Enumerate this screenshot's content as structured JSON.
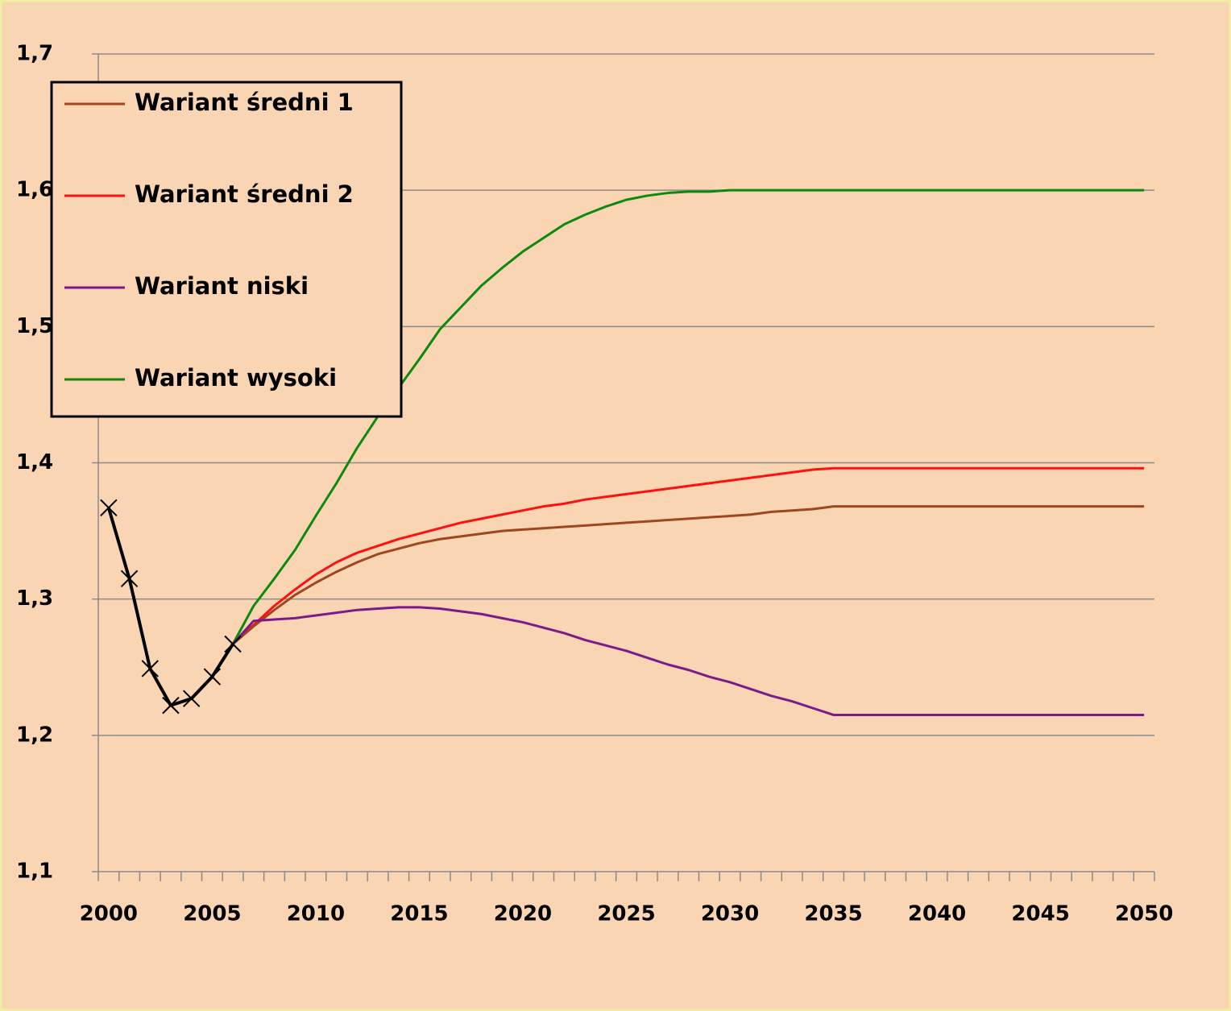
{
  "chart_data": {
    "type": "line",
    "categories": [
      "2000",
      null,
      null,
      null,
      null,
      "2005",
      null,
      null,
      null,
      null,
      "2010",
      null,
      null,
      null,
      null,
      "2015",
      null,
      null,
      null,
      null,
      "2020",
      null,
      null,
      null,
      null,
      "2025",
      null,
      null,
      null,
      null,
      "2030",
      null,
      null,
      null,
      null,
      "2035",
      null,
      null,
      null,
      null,
      "2040",
      null,
      null,
      null,
      null,
      "2045",
      null,
      null,
      null,
      null,
      "2050"
    ],
    "ylim": [
      1.1,
      1.7
    ],
    "yticks": [
      {
        "value": 1.1,
        "label": "1,1"
      },
      {
        "value": 1.2,
        "label": "1,2"
      },
      {
        "value": 1.3,
        "label": "1,3"
      },
      {
        "value": 1.4,
        "label": "1,4"
      },
      {
        "value": 1.5,
        "label": "1,5"
      },
      {
        "value": 1.6,
        "label": "1,6"
      },
      {
        "value": 1.7,
        "label": "1,7"
      }
    ],
    "grid": true,
    "legend": "upper left",
    "series": [
      {
        "name": "Wariant wysoki",
        "color": "#0b8a0b",
        "values": [
          null,
          null,
          null,
          null,
          null,
          null,
          1.267,
          1.295,
          1.315,
          1.336,
          1.361,
          1.385,
          1.411,
          1.434,
          1.455,
          1.476,
          1.498,
          1.514,
          1.53,
          1.543,
          1.555,
          1.565,
          1.575,
          1.582,
          1.588,
          1.593,
          1.596,
          1.598,
          1.599,
          1.599,
          1.6,
          1.6,
          1.6,
          1.6,
          1.6,
          1.6,
          1.6,
          1.6,
          1.6,
          1.6,
          1.6,
          1.6,
          1.6,
          1.6,
          1.6,
          1.6,
          1.6,
          1.6,
          1.6,
          1.6,
          1.6
        ]
      },
      {
        "name": "Wariant średni 2",
        "color": "#ff1010",
        "values": [
          null,
          null,
          null,
          null,
          null,
          null,
          1.267,
          1.281,
          1.295,
          1.307,
          1.318,
          1.327,
          1.334,
          1.339,
          1.344,
          1.348,
          1.352,
          1.356,
          1.359,
          1.362,
          1.365,
          1.368,
          1.37,
          1.373,
          1.375,
          1.377,
          1.379,
          1.381,
          1.383,
          1.385,
          1.387,
          1.389,
          1.391,
          1.393,
          1.395,
          1.396,
          1.396,
          1.396,
          1.396,
          1.396,
          1.396,
          1.396,
          1.396,
          1.396,
          1.396,
          1.396,
          1.396,
          1.396,
          1.396,
          1.396,
          1.396
        ]
      },
      {
        "name": "Wariant średni 1",
        "color": "#a0461e",
        "values": [
          null,
          null,
          null,
          null,
          null,
          null,
          1.267,
          1.28,
          1.292,
          1.303,
          1.312,
          1.32,
          1.327,
          1.333,
          1.337,
          1.341,
          1.344,
          1.346,
          1.348,
          1.35,
          1.351,
          1.352,
          1.353,
          1.354,
          1.355,
          1.356,
          1.357,
          1.358,
          1.359,
          1.36,
          1.361,
          1.362,
          1.364,
          1.365,
          1.366,
          1.368,
          1.368,
          1.368,
          1.368,
          1.368,
          1.368,
          1.368,
          1.368,
          1.368,
          1.368,
          1.368,
          1.368,
          1.368,
          1.368,
          1.368,
          1.368
        ]
      },
      {
        "name": "Wariant niski",
        "color": "#7a1a8c",
        "values": [
          null,
          null,
          null,
          null,
          null,
          null,
          1.267,
          1.284,
          1.285,
          1.286,
          1.288,
          1.29,
          1.292,
          1.293,
          1.294,
          1.294,
          1.293,
          1.291,
          1.289,
          1.286,
          1.283,
          1.279,
          1.275,
          1.27,
          1.266,
          1.262,
          1.257,
          1.252,
          1.248,
          1.243,
          1.239,
          1.234,
          1.229,
          1.225,
          1.22,
          1.215,
          1.215,
          1.215,
          1.215,
          1.215,
          1.215,
          1.215,
          1.215,
          1.215,
          1.215,
          1.215,
          1.215,
          1.215,
          1.215,
          1.215,
          1.215
        ]
      },
      {
        "color": "#000000",
        "marker": "x",
        "values": [
          1.367,
          1.315,
          1.249,
          1.222,
          1.227,
          1.243,
          1.267,
          null,
          null,
          null,
          null,
          null,
          null,
          null,
          null,
          null,
          null,
          null,
          null,
          null,
          null,
          null,
          null,
          null,
          null,
          null,
          null,
          null,
          null,
          null,
          null,
          null,
          null,
          null,
          null,
          null,
          null,
          null,
          null,
          null,
          null,
          null,
          null,
          null,
          null,
          null,
          null,
          null,
          null,
          null,
          null
        ]
      }
    ],
    "legend_order": [
      2,
      1,
      3,
      0
    ]
  }
}
